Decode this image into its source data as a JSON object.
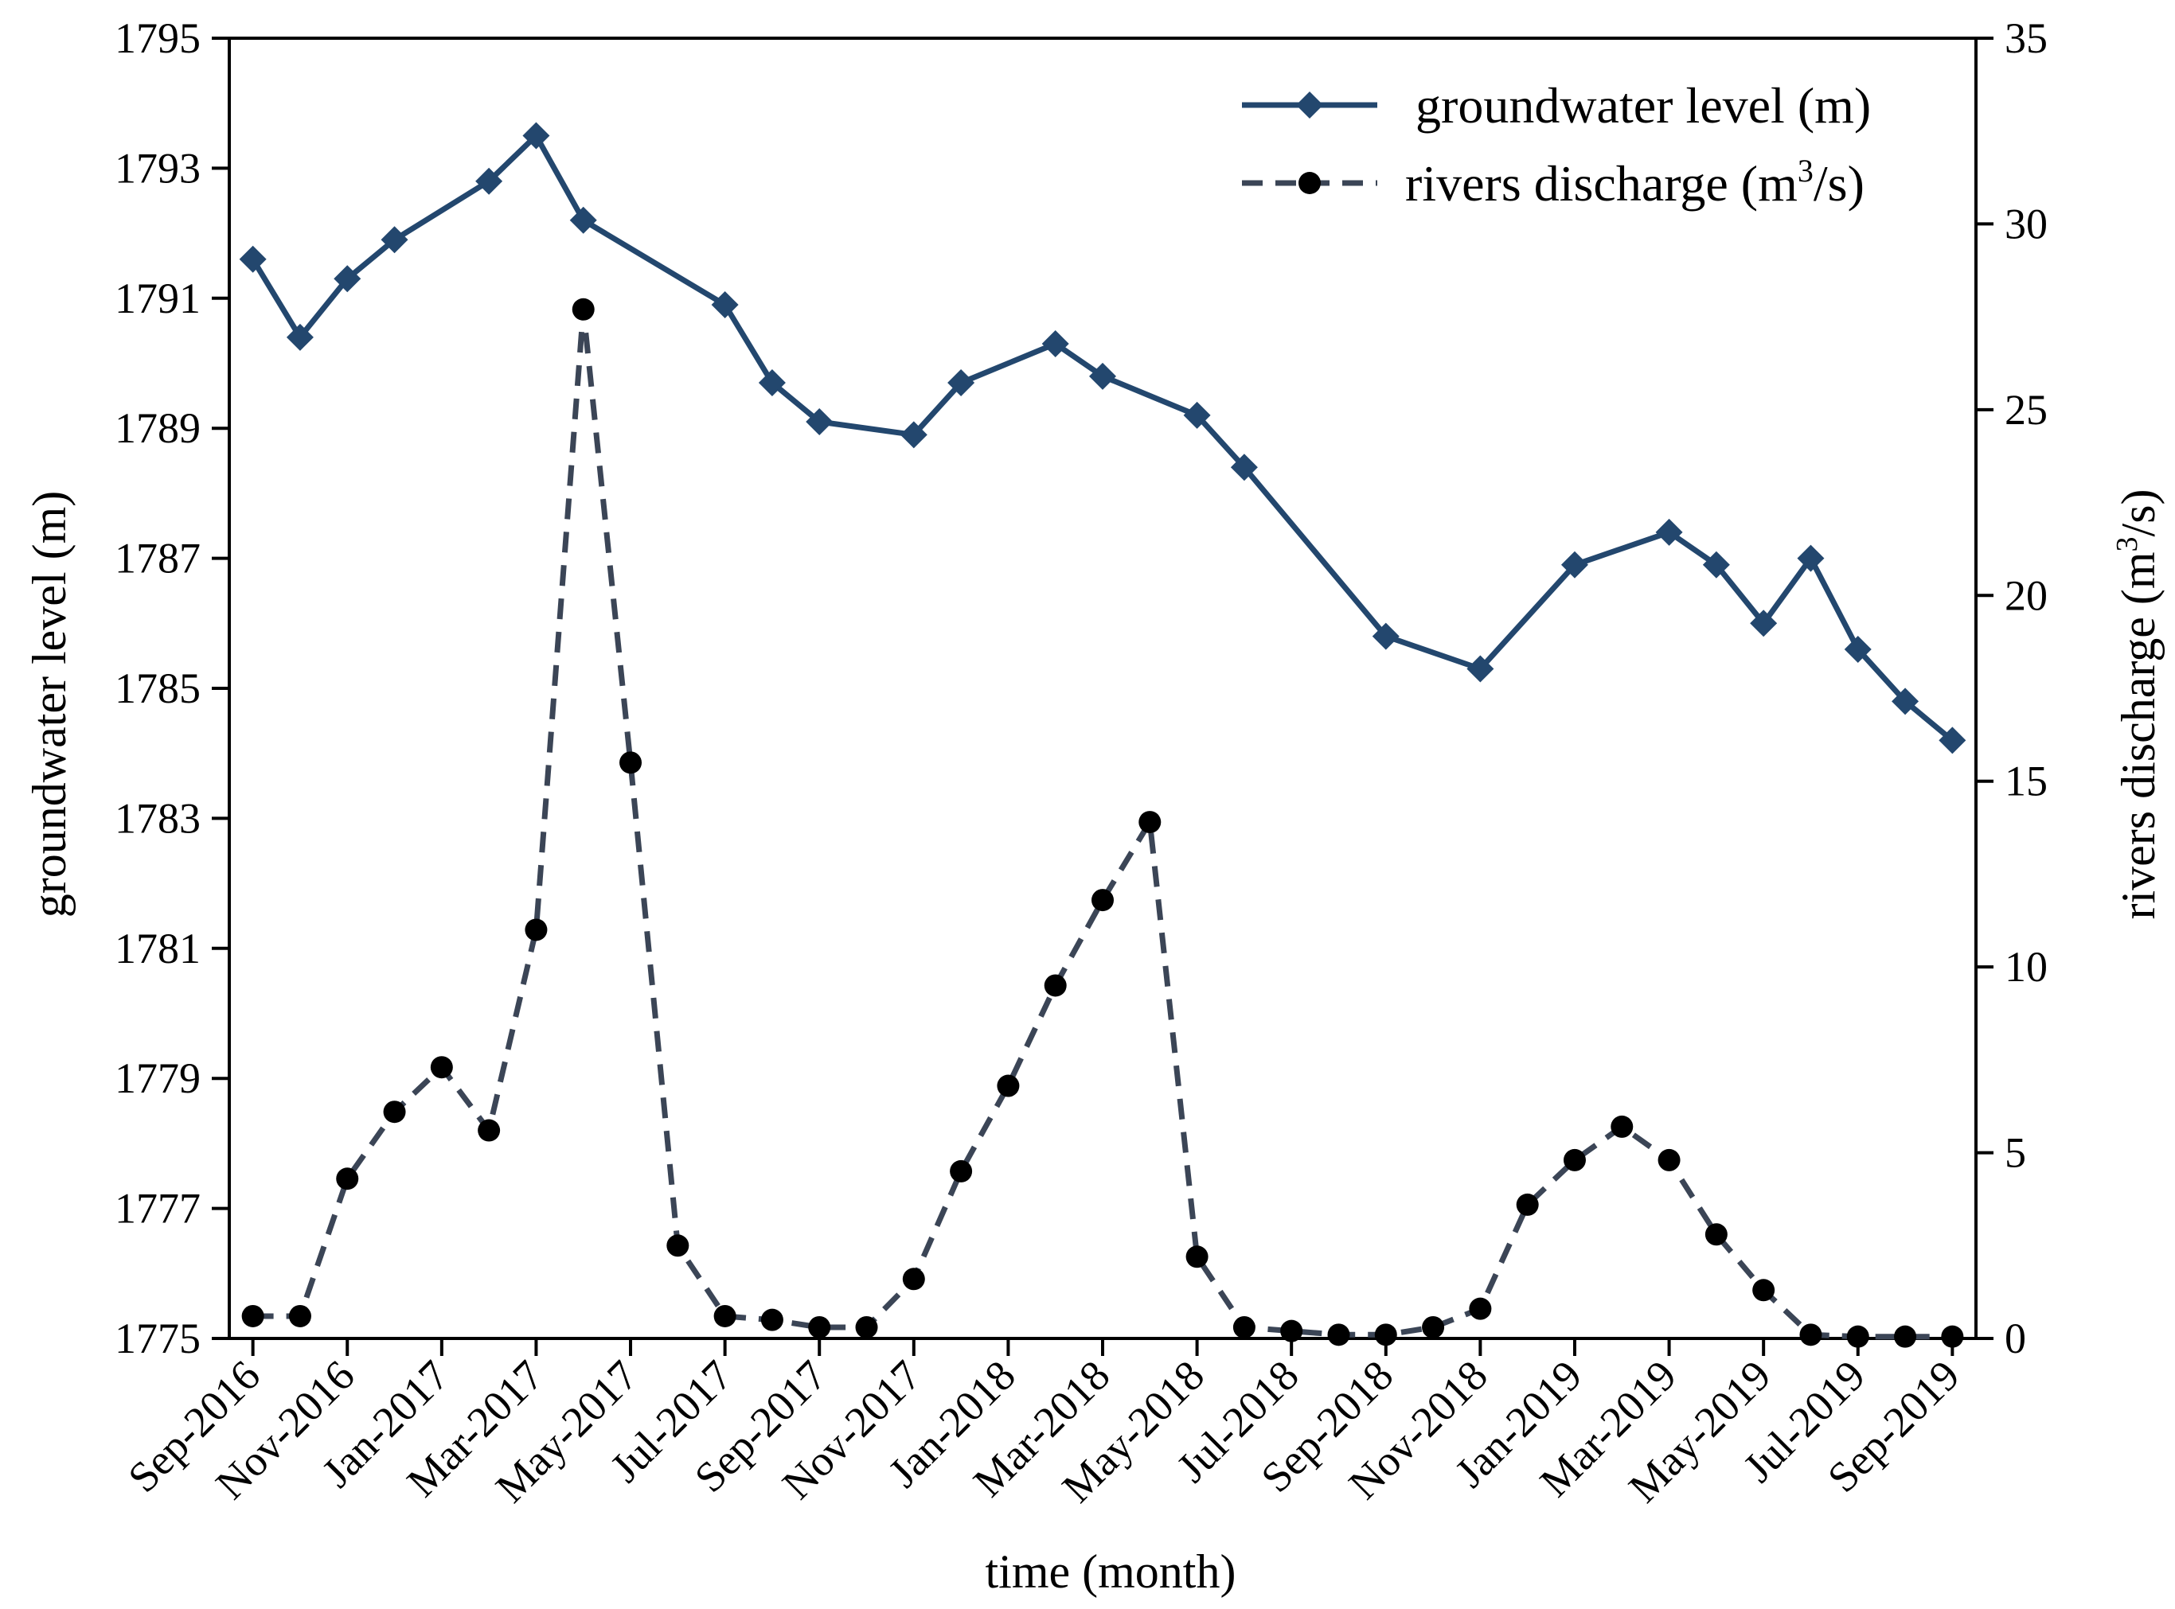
{
  "chart_data": {
    "type": "line",
    "title": "",
    "xlabel": "time (month)",
    "ylabel_left": "groundwater level (m)",
    "ylabel_right_base": "rivers discharge (m",
    "ylabel_right_sup": "3",
    "ylabel_right_tail": "/s)",
    "ylim_left": [
      1775,
      1795
    ],
    "ylim_right": [
      0,
      35
    ],
    "yticks_left": [
      "1775",
      "1777",
      "1779",
      "1781",
      "1783",
      "1785",
      "1787",
      "1789",
      "1791",
      "1793",
      "1795"
    ],
    "yticks_right": [
      "0",
      "5",
      "10",
      "15",
      "20",
      "25",
      "30",
      "35"
    ],
    "x_tick_labels": [
      "Sep-2016",
      "Nov-2016",
      "Jan-2017",
      "Mar-2017",
      "May-2017",
      "Jul-2017",
      "Sep-2017",
      "Nov-2017",
      "Jan-2018",
      "Mar-2018",
      "May-2018",
      "Jul-2018",
      "Sep-2018",
      "Nov-2018",
      "Jan-2019",
      "Mar-2019",
      "May-2019",
      "Jul-2019",
      "Sep-2019"
    ],
    "grid": false,
    "legend_position": "top-right",
    "series": [
      {
        "name": "groundwater level (m)",
        "axis": "left",
        "color": "#23476e",
        "style": "solid",
        "marker": "diamond",
        "points": [
          [
            0,
            1791.6
          ],
          [
            1,
            1790.4
          ],
          [
            2,
            1791.3
          ],
          [
            3,
            1791.9
          ],
          [
            5,
            1792.8
          ],
          [
            6,
            1793.5
          ],
          [
            7,
            1792.2
          ],
          [
            10,
            1790.9
          ],
          [
            11,
            1789.7
          ],
          [
            12,
            1789.1
          ],
          [
            14,
            1788.9
          ],
          [
            15,
            1789.7
          ],
          [
            17,
            1790.3
          ],
          [
            18,
            1789.8
          ],
          [
            20,
            1789.2
          ],
          [
            21,
            1788.4
          ],
          [
            24,
            1785.8
          ],
          [
            26,
            1785.3
          ],
          [
            28,
            1786.9
          ],
          [
            30,
            1787.4
          ],
          [
            31,
            1786.9
          ],
          [
            32,
            1786.0
          ],
          [
            33,
            1787.0
          ],
          [
            34,
            1785.6
          ],
          [
            35,
            1784.8
          ],
          [
            36,
            1784.2
          ]
        ]
      },
      {
        "name": "rivers discharge (m3/s)",
        "legend_base": "rivers discharge (m",
        "legend_sup": "3",
        "legend_tail": "/s)",
        "axis": "right",
        "color": "#3b4556",
        "style": "dashed",
        "marker": "circle",
        "points": [
          [
            0,
            0.6
          ],
          [
            1,
            0.6
          ],
          [
            2,
            4.3
          ],
          [
            3,
            6.1
          ],
          [
            4,
            7.3
          ],
          [
            5,
            5.6
          ],
          [
            6,
            11.0
          ],
          [
            7,
            27.7
          ],
          [
            8,
            15.5
          ],
          [
            9,
            2.5
          ],
          [
            10,
            0.6
          ],
          [
            11,
            0.5
          ],
          [
            12,
            0.3
          ],
          [
            13,
            0.3
          ],
          [
            14,
            1.6
          ],
          [
            15,
            4.5
          ],
          [
            16,
            6.8
          ],
          [
            17,
            9.5
          ],
          [
            18,
            11.8
          ],
          [
            19,
            13.9
          ],
          [
            20,
            2.2
          ],
          [
            21,
            0.3
          ],
          [
            22,
            0.2
          ],
          [
            23,
            0.1
          ],
          [
            24,
            0.1
          ],
          [
            25,
            0.3
          ],
          [
            26,
            0.8
          ],
          [
            27,
            3.6
          ],
          [
            28,
            4.8
          ],
          [
            29,
            5.7
          ],
          [
            30,
            4.8
          ],
          [
            31,
            2.8
          ],
          [
            32,
            1.3
          ],
          [
            33,
            0.1
          ],
          [
            34,
            0.05
          ],
          [
            35,
            0.05
          ],
          [
            36,
            0.05
          ]
        ]
      }
    ]
  }
}
